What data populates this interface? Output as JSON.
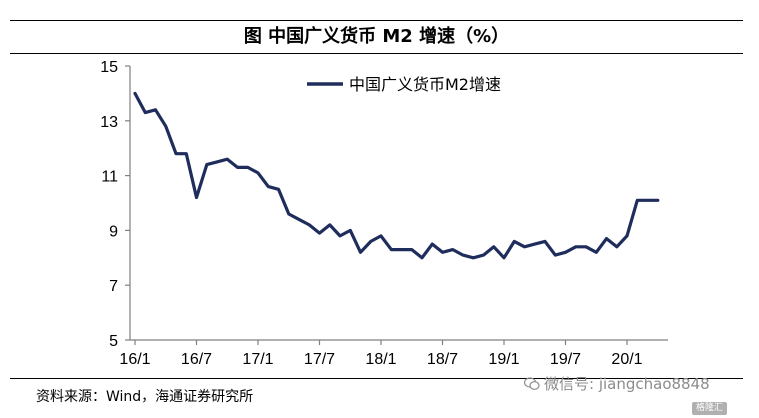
{
  "header": {
    "title": "图  中国广义货币 M2 增速（%）"
  },
  "source": {
    "text": "资料来源：Wind，海通证券研究所"
  },
  "watermark": {
    "text": "微信号: jiangchao8848",
    "icon": "wechat-icon"
  },
  "badge": {
    "text": "格隆汇"
  },
  "colors": {
    "series": "#1f2d5c",
    "axis": "#808080"
  },
  "chart_data": {
    "type": "line",
    "ylim": [
      5,
      15
    ],
    "yticks": [
      5,
      7,
      9,
      11,
      13,
      15
    ],
    "xlim": [
      0,
      52
    ],
    "xticks": [
      {
        "label": "16/1",
        "x": 0
      },
      {
        "label": "16/7",
        "x": 6
      },
      {
        "label": "17/1",
        "x": 12
      },
      {
        "label": "17/7",
        "x": 18
      },
      {
        "label": "18/1",
        "x": 24
      },
      {
        "label": "18/7",
        "x": 30
      },
      {
        "label": "19/1",
        "x": 36
      },
      {
        "label": "19/7",
        "x": 42
      },
      {
        "label": "20/1",
        "x": 48
      }
    ],
    "series": [
      {
        "name": "中国广义货币M2增速",
        "x": [
          0,
          1,
          2,
          3,
          4,
          5,
          6,
          7,
          8,
          9,
          10,
          11,
          12,
          13,
          14,
          15,
          16,
          17,
          18,
          19,
          20,
          21,
          22,
          23,
          24,
          25,
          26,
          27,
          28,
          29,
          30,
          31,
          32,
          33,
          34,
          35,
          36,
          37,
          38,
          39,
          40,
          41,
          42,
          43,
          44,
          45,
          46,
          47,
          48,
          49,
          50,
          51
        ],
        "values": [
          14.0,
          13.3,
          13.4,
          12.8,
          11.8,
          11.8,
          10.2,
          11.4,
          11.5,
          11.6,
          11.3,
          11.3,
          11.1,
          10.6,
          10.5,
          9.6,
          9.4,
          9.2,
          8.9,
          9.2,
          8.8,
          9.0,
          8.2,
          8.6,
          8.8,
          8.3,
          8.3,
          8.3,
          8.0,
          8.5,
          8.2,
          8.3,
          8.1,
          8.0,
          8.1,
          8.4,
          8.0,
          8.6,
          8.4,
          8.5,
          8.6,
          8.1,
          8.2,
          8.4,
          8.4,
          8.2,
          8.7,
          8.4,
          8.8,
          10.1,
          10.1,
          10.1
        ]
      }
    ]
  }
}
